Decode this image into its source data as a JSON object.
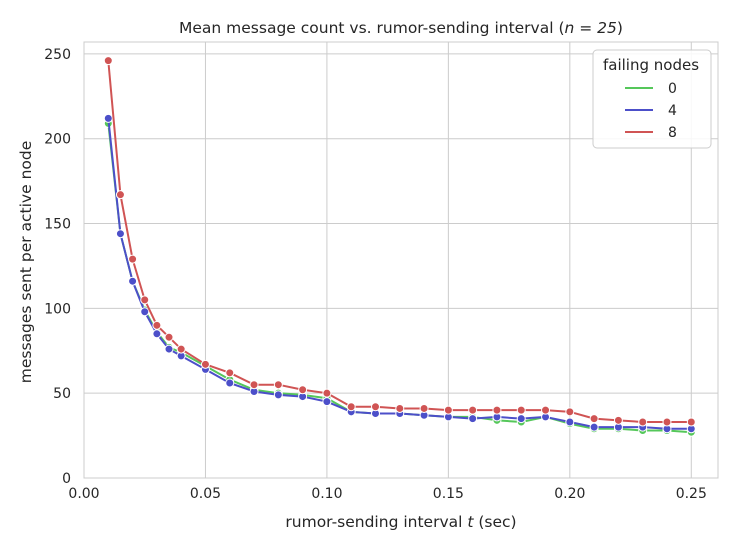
{
  "chart_data": {
    "type": "line",
    "title_prefix": "Mean message count vs. rumor-sending interval (",
    "title_math": "n = 25",
    "title_suffix": ")",
    "xlabel_prefix": "rumor-sending interval ",
    "xlabel_math": "t",
    "xlabel_suffix": " (sec)",
    "ylabel": "messages sent per active node",
    "xlim": [
      0.0,
      0.261
    ],
    "ylim": [
      0,
      257
    ],
    "xticks": [
      0.0,
      0.05,
      0.1,
      0.15,
      0.2,
      0.25
    ],
    "xtick_labels": [
      "0.00",
      "0.05",
      "0.10",
      "0.15",
      "0.20",
      "0.25"
    ],
    "yticks": [
      0,
      50,
      100,
      150,
      200,
      250
    ],
    "ytick_labels": [
      "0",
      "50",
      "100",
      "150",
      "200",
      "250"
    ],
    "grid": true,
    "legend": {
      "title": "failing nodes",
      "placement": "top-right"
    },
    "x": [
      0.01,
      0.015,
      0.02,
      0.025,
      0.03,
      0.035,
      0.04,
      0.05,
      0.06,
      0.07,
      0.08,
      0.09,
      0.1,
      0.11,
      0.12,
      0.13,
      0.14,
      0.15,
      0.16,
      0.17,
      0.18,
      0.19,
      0.2,
      0.21,
      0.22,
      0.23,
      0.24,
      0.25
    ],
    "series": [
      {
        "name": "0",
        "color": "#55c75a",
        "values": [
          209,
          144,
          116,
          99,
          86,
          77,
          74,
          66,
          58,
          52,
          50,
          49,
          47,
          39,
          38,
          38,
          37,
          36,
          36,
          34,
          33,
          36,
          32,
          29,
          29,
          28,
          28,
          27
        ]
      },
      {
        "name": "4",
        "color": "#4c4fc9",
        "values": [
          212,
          144,
          116,
          98,
          85,
          76,
          72,
          64,
          56,
          51,
          49,
          48,
          45,
          39,
          38,
          38,
          37,
          36,
          35,
          36,
          35,
          36,
          33,
          30,
          30,
          30,
          29,
          29
        ]
      },
      {
        "name": "8",
        "color": "#d05454",
        "values": [
          246,
          167,
          129,
          105,
          90,
          83,
          76,
          67,
          62,
          55,
          55,
          52,
          50,
          42,
          42,
          41,
          41,
          40,
          40,
          40,
          40,
          40,
          39,
          35,
          34,
          33,
          33,
          33
        ]
      }
    ]
  }
}
